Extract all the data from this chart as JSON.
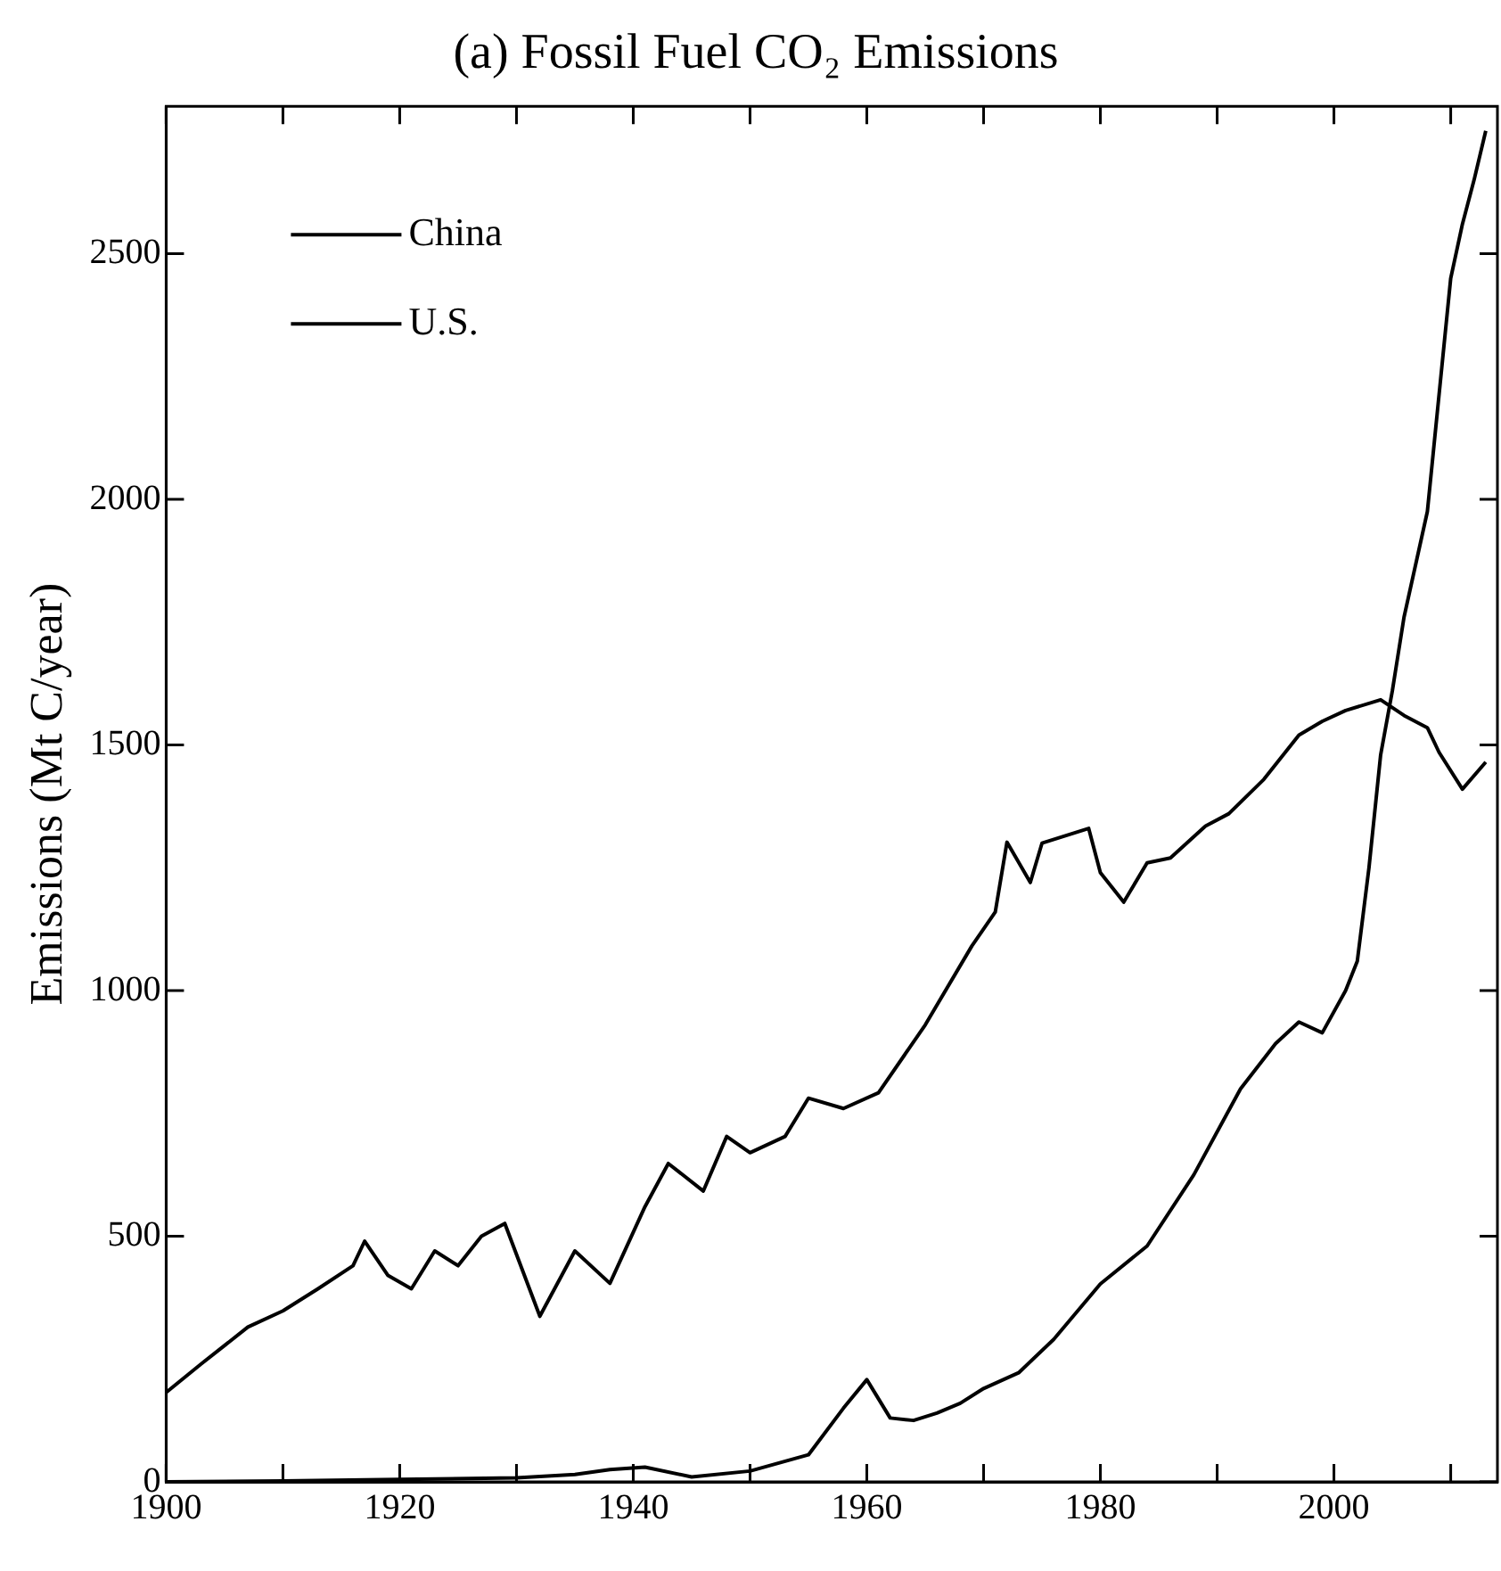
{
  "chart_data": {
    "type": "line",
    "title": "(a) Fossil Fuel CO₂ Emissions",
    "ylabel": "Emissions (Mt C/year)",
    "xlim": [
      1900,
      2014
    ],
    "ylim": [
      0,
      2800
    ],
    "xticks": [
      1900,
      {
        "value": 1910,
        "label": null
      },
      1920,
      {
        "value": 1930,
        "label": null
      },
      1940,
      {
        "value": 1950,
        "label": null
      },
      1960,
      {
        "value": 1970,
        "label": null
      },
      1980,
      {
        "value": 1990,
        "label": null
      },
      2000,
      {
        "value": 2010,
        "label": null
      }
    ],
    "yticks": [
      0,
      500,
      1000,
      1500,
      2000,
      2500
    ],
    "grid": false,
    "legend": "top left",
    "marker": "none",
    "line_style": "solid",
    "series": [
      {
        "name": "China",
        "color": "#000000",
        "x": [
          1900,
          1910,
          1920,
          1930,
          1935,
          1938,
          1941,
          1945,
          1950,
          1955,
          1958,
          1960,
          1962,
          1964,
          1966,
          1968,
          1970,
          1973,
          1976,
          1980,
          1984,
          1988,
          1992,
          1995,
          1997,
          1999,
          2001,
          2002,
          2003,
          2004,
          2005,
          2006,
          2008,
          2010,
          2011,
          2012,
          2013
        ],
        "values": [
          0,
          2,
          5,
          8,
          15,
          25,
          30,
          10,
          22,
          55,
          150,
          208,
          130,
          125,
          140,
          160,
          190,
          222,
          290,
          403,
          480,
          625,
          800,
          892,
          936,
          914,
          1000,
          1060,
          1250,
          1480,
          1610,
          1760,
          1975,
          2450,
          2560,
          2650,
          2750
        ]
      },
      {
        "name": "U.S.",
        "color": "#000000",
        "x": [
          1900,
          1903,
          1907,
          1910,
          1913,
          1916,
          1917,
          1919,
          1921,
          1923,
          1925,
          1927,
          1929,
          1932,
          1935,
          1938,
          1941,
          1943,
          1946,
          1948,
          1950,
          1953,
          1955,
          1958,
          1961,
          1965,
          1969,
          1971,
          1972,
          1974,
          1975,
          1979,
          1980,
          1982,
          1984,
          1986,
          1989,
          1991,
          1994,
          1997,
          1999,
          2001,
          2004,
          2006,
          2008,
          2009,
          2011,
          2013
        ],
        "values": [
          182,
          240,
          315,
          348,
          393,
          440,
          490,
          420,
          393,
          470,
          440,
          500,
          526,
          337,
          470,
          404,
          560,
          648,
          592,
          703,
          670,
          703,
          781,
          760,
          792,
          930,
          1091,
          1160,
          1302,
          1220,
          1300,
          1330,
          1240,
          1180,
          1260,
          1270,
          1335,
          1360,
          1430,
          1520,
          1548,
          1570,
          1592,
          1560,
          1535,
          1485,
          1410,
          1465
        ]
      }
    ]
  }
}
